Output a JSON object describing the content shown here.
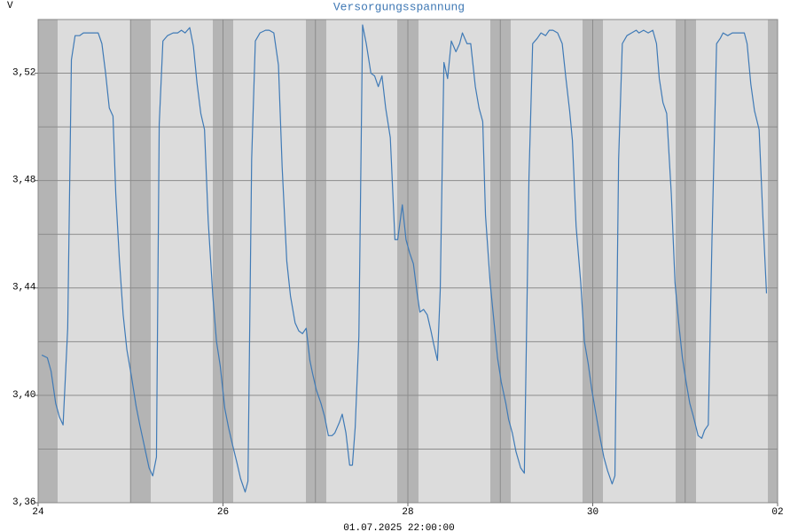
{
  "chart_data": {
    "type": "line",
    "title": "Versorgungsspannung",
    "ylabel": "V",
    "xlabel": "01.07.2025 22:00:00",
    "color": "#3f7ab6",
    "grid": true,
    "xlim": [
      24,
      32
    ],
    "xticks": [
      24,
      26,
      28,
      30,
      {
        "value": 32,
        "label": "02"
      }
    ],
    "xgrid": [
      25,
      26,
      27,
      28,
      29,
      30,
      31
    ],
    "ylim": [
      3.36,
      3.54
    ],
    "yticks": [
      {
        "value": 3.36,
        "label": "3,36"
      },
      {
        "value": 3.4,
        "label": "3,40"
      },
      {
        "value": 3.44,
        "label": "3,44"
      },
      {
        "value": 3.48,
        "label": "3,48"
      },
      {
        "value": 3.52,
        "label": "3,52"
      }
    ],
    "ygrid": [
      3.38,
      3.4,
      3.42,
      3.44,
      3.46,
      3.48,
      3.5,
      3.52
    ],
    "x": [
      24.04,
      24.1,
      24.14,
      24.19,
      24.23,
      24.27,
      24.32,
      24.36,
      24.4,
      24.45,
      24.49,
      24.53,
      24.58,
      24.62,
      24.65,
      24.69,
      24.73,
      24.77,
      24.81,
      24.84,
      24.88,
      24.92,
      24.96,
      25.01,
      25.06,
      25.1,
      25.15,
      25.2,
      25.24,
      25.28,
      25.31,
      25.35,
      25.4,
      25.46,
      25.51,
      25.55,
      25.59,
      25.64,
      25.68,
      25.72,
      25.76,
      25.8,
      25.84,
      25.89,
      25.93,
      25.97,
      26.02,
      26.06,
      26.1,
      26.15,
      26.19,
      26.24,
      26.27,
      26.31,
      26.35,
      26.4,
      26.46,
      26.5,
      26.55,
      26.6,
      26.64,
      26.69,
      26.73,
      26.78,
      26.82,
      26.86,
      26.9,
      26.94,
      26.97,
      27.01,
      27.06,
      27.1,
      27.14,
      27.18,
      27.21,
      27.26,
      27.29,
      27.33,
      27.37,
      27.4,
      27.43,
      27.47,
      27.51,
      27.55,
      27.6,
      27.64,
      27.68,
      27.72,
      27.76,
      27.81,
      27.86,
      27.89,
      27.94,
      27.98,
      28.02,
      28.06,
      28.1,
      28.13,
      28.17,
      28.21,
      28.25,
      28.28,
      28.32,
      28.35,
      28.39,
      28.43,
      28.47,
      28.52,
      28.56,
      28.59,
      28.64,
      28.68,
      28.73,
      28.77,
      28.81,
      28.84,
      28.89,
      28.93,
      28.97,
      29.01,
      29.06,
      29.09,
      29.13,
      29.17,
      29.22,
      29.26,
      29.31,
      29.35,
      29.4,
      29.44,
      29.49,
      29.53,
      29.57,
      29.62,
      29.67,
      29.71,
      29.75,
      29.78,
      29.82,
      29.87,
      29.91,
      29.95,
      29.99,
      30.03,
      30.07,
      30.12,
      30.16,
      30.21,
      30.24,
      30.28,
      30.32,
      30.37,
      30.42,
      30.47,
      30.5,
      30.55,
      30.6,
      30.65,
      30.69,
      30.72,
      30.76,
      30.8,
      30.85,
      30.89,
      30.93,
      30.97,
      31.01,
      31.05,
      31.09,
      31.14,
      31.18,
      31.21,
      31.25,
      31.29,
      31.34,
      31.38,
      31.41,
      31.46,
      31.51,
      31.55,
      31.6,
      31.64,
      31.67,
      31.71,
      31.75,
      31.8,
      31.84,
      31.88
    ],
    "values": [
      3.415,
      3.414,
      3.409,
      3.397,
      3.392,
      3.389,
      3.425,
      3.525,
      3.534,
      3.534,
      3.535,
      3.535,
      3.535,
      3.535,
      3.535,
      3.531,
      3.52,
      3.507,
      3.504,
      3.475,
      3.45,
      3.43,
      3.417,
      3.407,
      3.396,
      3.389,
      3.381,
      3.373,
      3.37,
      3.377,
      3.501,
      3.532,
      3.534,
      3.535,
      3.535,
      3.536,
      3.535,
      3.537,
      3.53,
      3.516,
      3.505,
      3.499,
      3.465,
      3.437,
      3.42,
      3.411,
      3.395,
      3.388,
      3.382,
      3.375,
      3.369,
      3.364,
      3.368,
      3.488,
      3.532,
      3.535,
      3.536,
      3.536,
      3.535,
      3.523,
      3.485,
      3.45,
      3.437,
      3.427,
      3.424,
      3.423,
      3.425,
      3.413,
      3.408,
      3.402,
      3.397,
      3.392,
      3.385,
      3.385,
      3.386,
      3.39,
      3.393,
      3.386,
      3.374,
      3.374,
      3.388,
      3.422,
      3.538,
      3.531,
      3.52,
      3.519,
      3.515,
      3.519,
      3.507,
      3.496,
      3.458,
      3.458,
      3.471,
      3.458,
      3.453,
      3.449,
      3.438,
      3.431,
      3.432,
      3.43,
      3.424,
      3.419,
      3.413,
      3.439,
      3.524,
      3.518,
      3.532,
      3.528,
      3.531,
      3.535,
      3.531,
      3.531,
      3.515,
      3.507,
      3.502,
      3.467,
      3.442,
      3.428,
      3.414,
      3.405,
      3.397,
      3.391,
      3.386,
      3.379,
      3.373,
      3.371,
      3.481,
      3.531,
      3.533,
      3.535,
      3.534,
      3.536,
      3.536,
      3.535,
      3.531,
      3.518,
      3.506,
      3.495,
      3.463,
      3.442,
      3.42,
      3.412,
      3.402,
      3.394,
      3.386,
      3.377,
      3.372,
      3.367,
      3.37,
      3.488,
      3.531,
      3.534,
      3.535,
      3.536,
      3.535,
      3.536,
      3.535,
      3.536,
      3.531,
      3.518,
      3.509,
      3.505,
      3.475,
      3.442,
      3.427,
      3.414,
      3.405,
      3.397,
      3.392,
      3.385,
      3.384,
      3.387,
      3.389,
      3.458,
      3.531,
      3.533,
      3.535,
      3.534,
      3.535,
      3.535,
      3.535,
      3.535,
      3.531,
      3.516,
      3.506,
      3.499,
      3.467,
      3.438
    ]
  }
}
